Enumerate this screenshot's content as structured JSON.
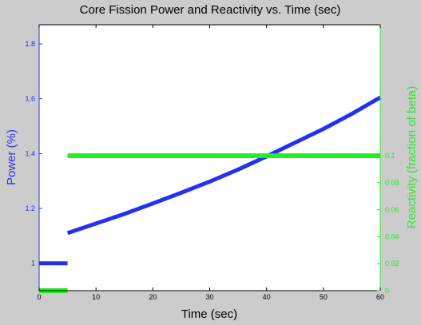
{
  "chart_data": {
    "type": "line",
    "title": "Core Fission Power and Reactivity vs. Time (sec)",
    "xlabel": "Time (sec)",
    "ylabel_left": "Power (%)",
    "ylabel_right": "Reactivity (fraction of beta)",
    "xlim": [
      0,
      60
    ],
    "ylim_left": [
      0.9,
      1.87
    ],
    "ylim_right": [
      0,
      0.197
    ],
    "xticks": [
      "0",
      "10",
      "20",
      "30",
      "40",
      "50",
      "60"
    ],
    "yticks_left": [
      "1",
      "1.2",
      "1.4",
      "1.6",
      "1.8"
    ],
    "yticks_right": [
      "0",
      "0.02",
      "0.04",
      "0.06",
      "0.08",
      "0.1"
    ],
    "grid": false,
    "colors": {
      "power": "#2233ee",
      "reactivity": "#22ee22",
      "left_axis": "#2233ee",
      "right_axis": "#22ee22",
      "background": "#cccccc",
      "plot_background": "#ffffff"
    },
    "series": [
      {
        "axis": "left",
        "color": "#2233ee",
        "segments": [
          {
            "x": [
              0,
              5
            ],
            "y": [
              1.0,
              1.0
            ]
          },
          {
            "x": [
              5,
              10,
              15,
              20,
              25,
              30,
              35,
              40,
              45,
              50,
              55,
              60
            ],
            "y": [
              1.11,
              1.145,
              1.18,
              1.218,
              1.257,
              1.298,
              1.342,
              1.39,
              1.44,
              1.49,
              1.545,
              1.605
            ]
          }
        ]
      },
      {
        "axis": "right",
        "color": "#22ee22",
        "segments": [
          {
            "x": [
              0,
              5
            ],
            "y": [
              0,
              0
            ]
          },
          {
            "x": [
              5,
              60
            ],
            "y": [
              0.1,
              0.1
            ]
          }
        ]
      }
    ]
  }
}
